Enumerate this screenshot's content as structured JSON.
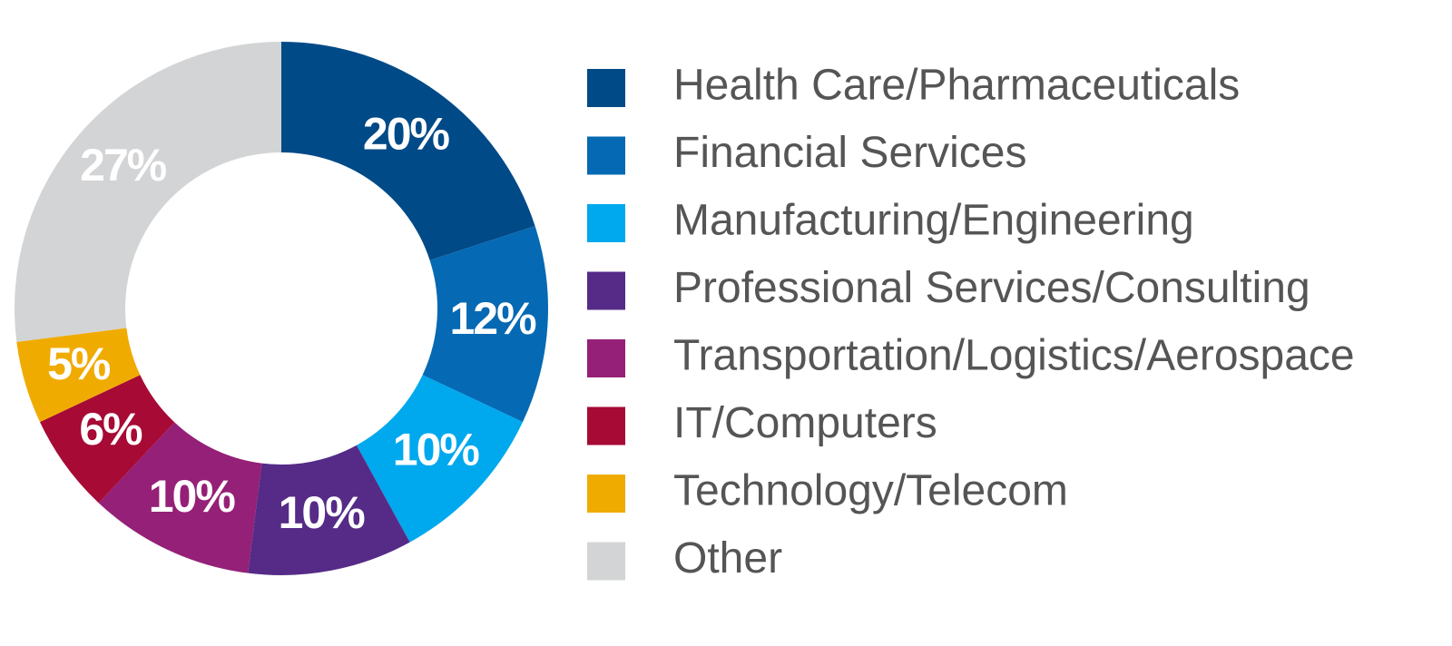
{
  "chart_data": {
    "type": "donut",
    "categories": [
      "Health Care/Pharmaceuticals",
      "Financial Services",
      "Manufacturing/Engineering",
      "Professional Services/Consulting",
      "Transportation/Logistics/Aerospace",
      "IT/Computers",
      "Technology/Telecom",
      "Other"
    ],
    "values": [
      20,
      12,
      10,
      10,
      10,
      6,
      5,
      27
    ],
    "value_labels": [
      "20%",
      "12%",
      "10%",
      "10%",
      "10%",
      "6%",
      "5%",
      "27%"
    ],
    "colors": [
      "#004a87",
      "#0569b3",
      "#00a8ee",
      "#552b87",
      "#952077",
      "#a60a35",
      "#f0ab00",
      "#d3d4d5"
    ],
    "legend": "right"
  }
}
